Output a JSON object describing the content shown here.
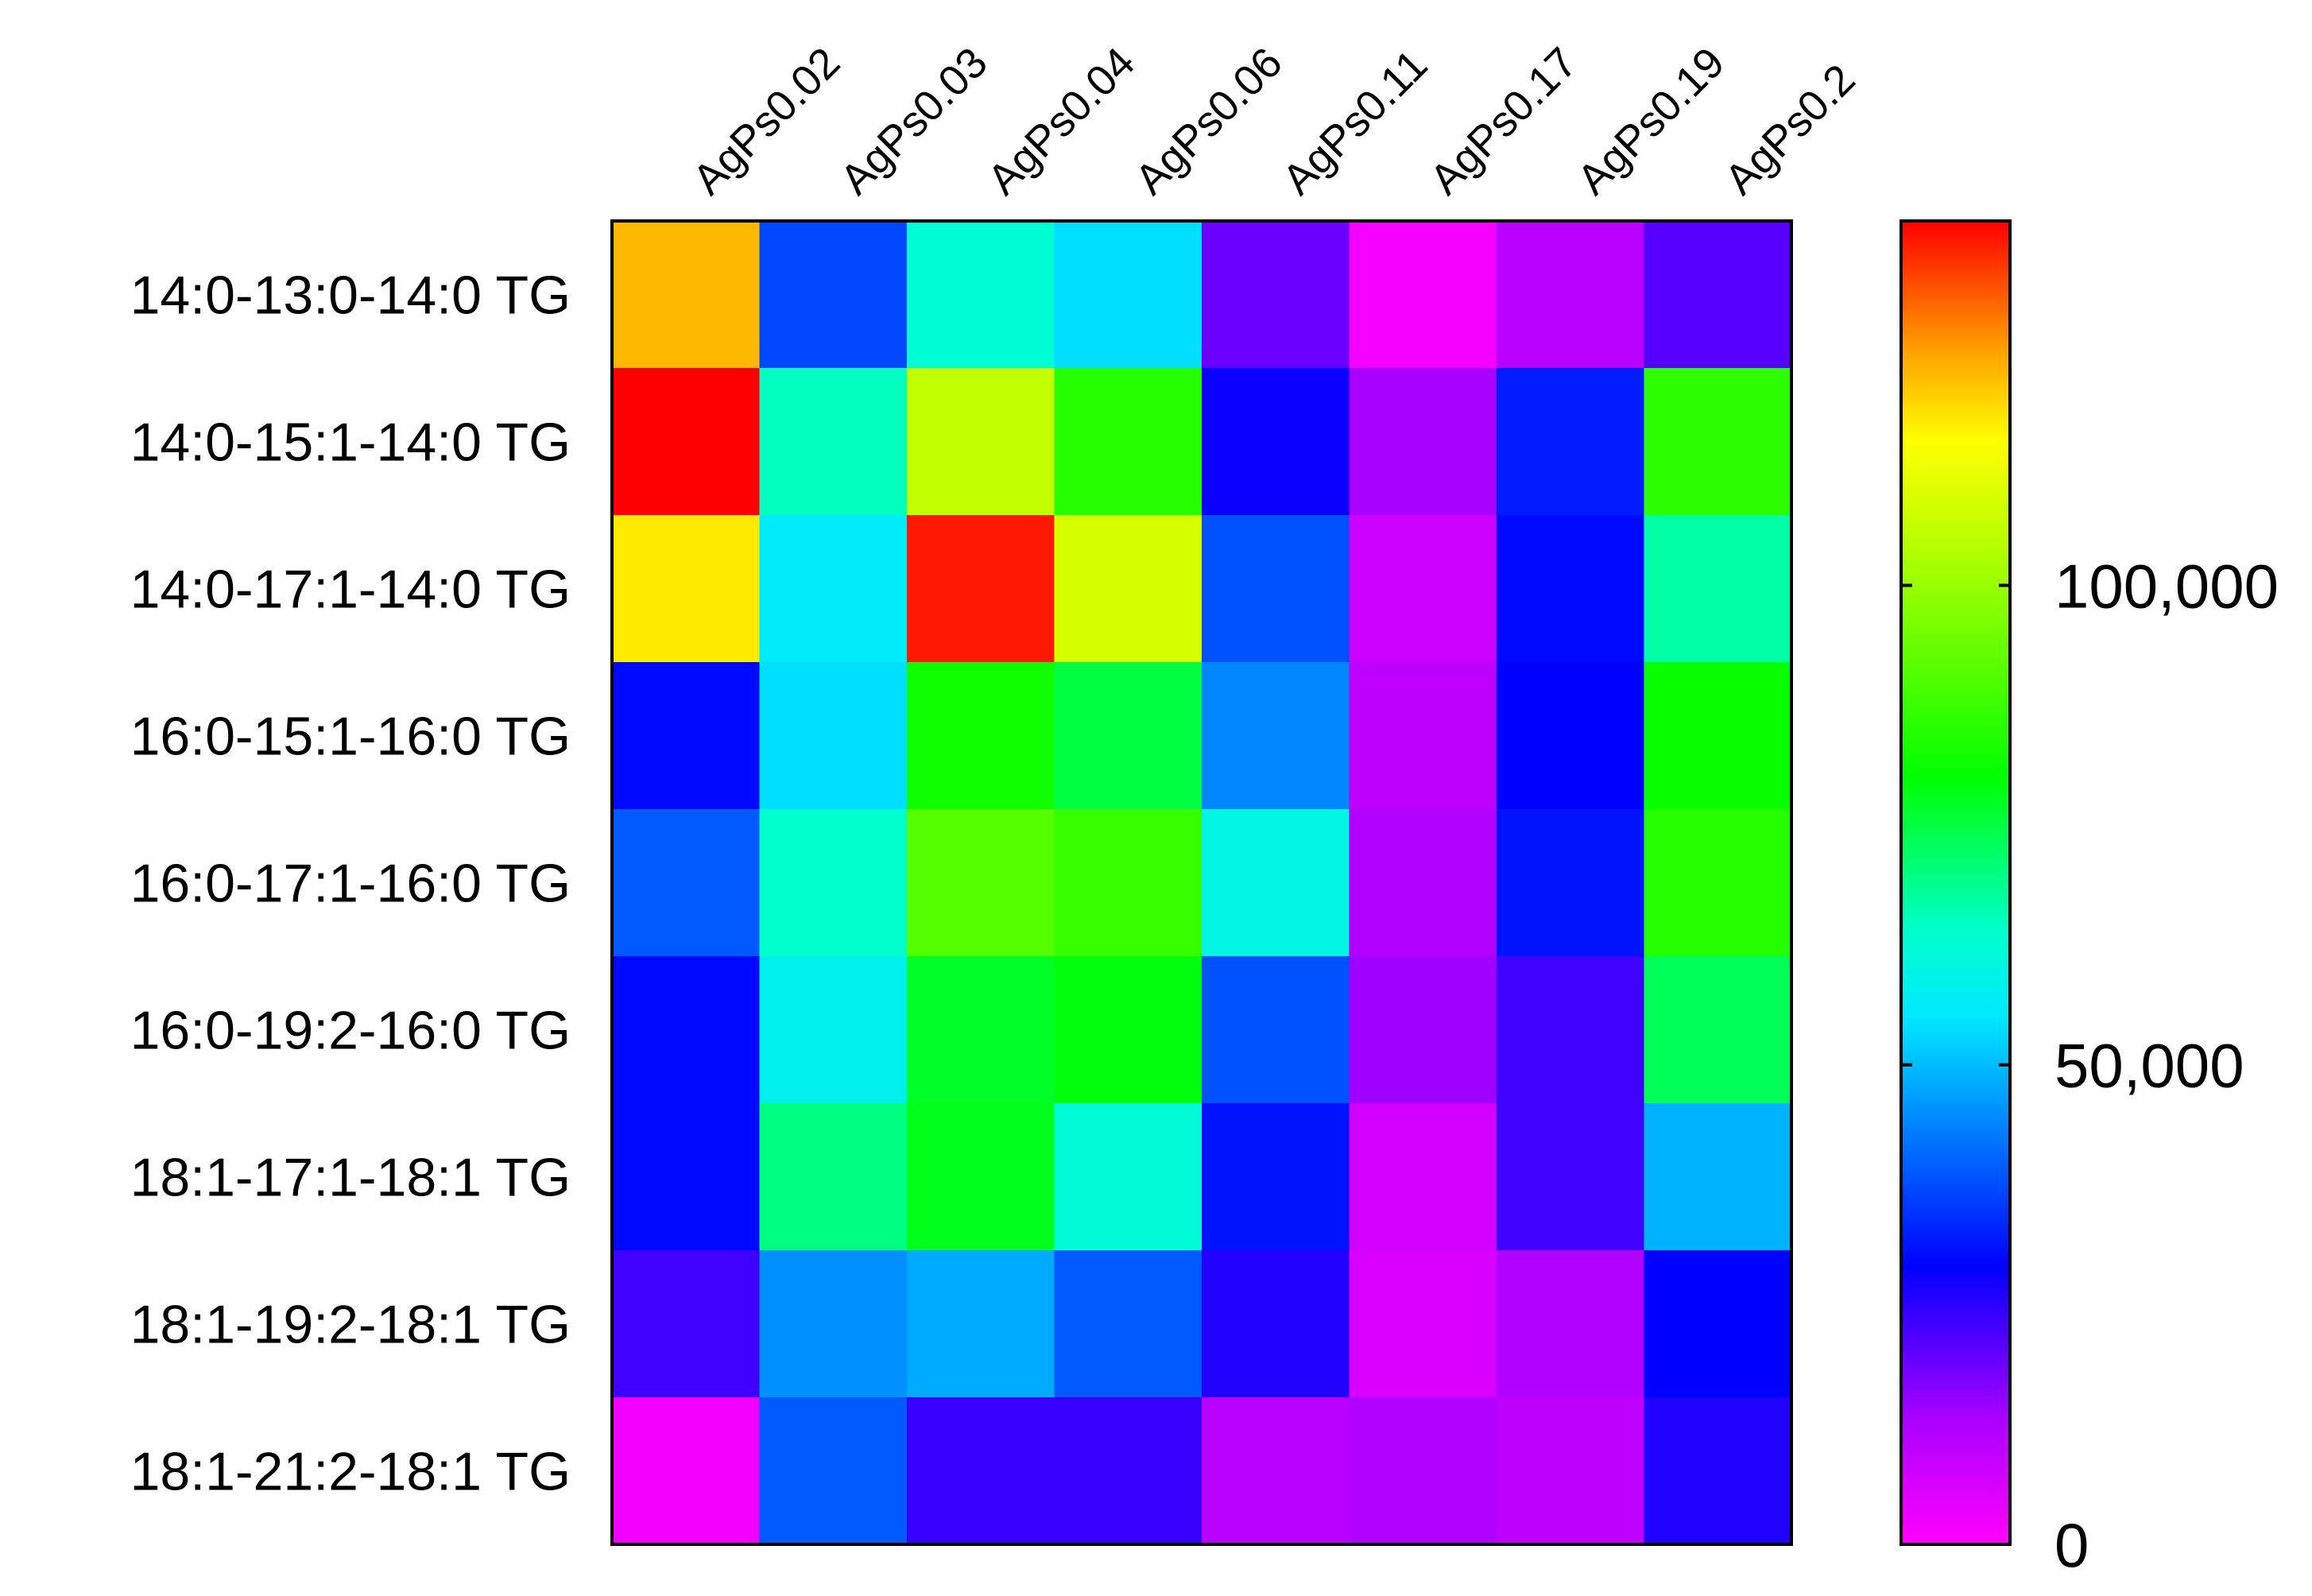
{
  "chart_data": {
    "type": "heatmap",
    "title": "",
    "columns": [
      "AgPs0.02",
      "AgPs0.03",
      "AgPs0.04",
      "AgPs0.06",
      "AgPs0.11",
      "AgPs0.17",
      "AgPs0.19",
      "AgPs0.2"
    ],
    "rows": [
      "14:0-13:0-14:0 TG",
      "14:0-15:1-14:0 TG",
      "14:0-17:1-14:0 TG",
      "16:0-15:1-16:0 TG",
      "16:0-17:1-16:0 TG",
      "16:0-19:2-16:0 TG",
      "18:1-17:1-18:1 TG",
      "18:1-19:2-18:1 TG",
      "18:1-21:2-18:1 TG"
    ],
    "values": [
      [
        122000,
        37000,
        63000,
        54000,
        19000,
        1500,
        11000,
        21000
      ],
      [
        138000,
        65000,
        106000,
        85000,
        28000,
        13000,
        32000,
        86000
      ],
      [
        117000,
        56000,
        136000,
        109000,
        38000,
        8000,
        30000,
        67000
      ],
      [
        30000,
        54000,
        82000,
        75000,
        44000,
        10000,
        29000,
        81000
      ],
      [
        39000,
        64000,
        91000,
        87000,
        60000,
        12000,
        31000,
        85000
      ],
      [
        30000,
        58000,
        77000,
        79000,
        38000,
        14000,
        23000,
        73000
      ],
      [
        30000,
        70000,
        78000,
        62000,
        31000,
        7000,
        23000,
        49000
      ],
      [
        23000,
        45000,
        48000,
        39000,
        26000,
        6000,
        12000,
        29000
      ],
      [
        2000,
        39000,
        24000,
        24000,
        11000,
        12000,
        10000,
        26000
      ]
    ],
    "colorbar": {
      "min": 0,
      "max": 138000,
      "ticks": [
        0,
        50000,
        100000
      ],
      "tick_labels": [
        "0",
        "50,000",
        "100,000"
      ]
    },
    "color_stops": [
      {
        "v": 0,
        "c": "#ff00ff"
      },
      {
        "v": 13000,
        "c": "#aa00ff"
      },
      {
        "v": 29000,
        "c": "#0000ff"
      },
      {
        "v": 45000,
        "c": "#0090ff"
      },
      {
        "v": 55000,
        "c": "#00e8ff"
      },
      {
        "v": 64000,
        "c": "#00ffcc"
      },
      {
        "v": 80000,
        "c": "#00ff00"
      },
      {
        "v": 100000,
        "c": "#99ff00"
      },
      {
        "v": 115000,
        "c": "#ffff00"
      },
      {
        "v": 124000,
        "c": "#ffa500"
      },
      {
        "v": 138000,
        "c": "#ff0000"
      }
    ]
  }
}
